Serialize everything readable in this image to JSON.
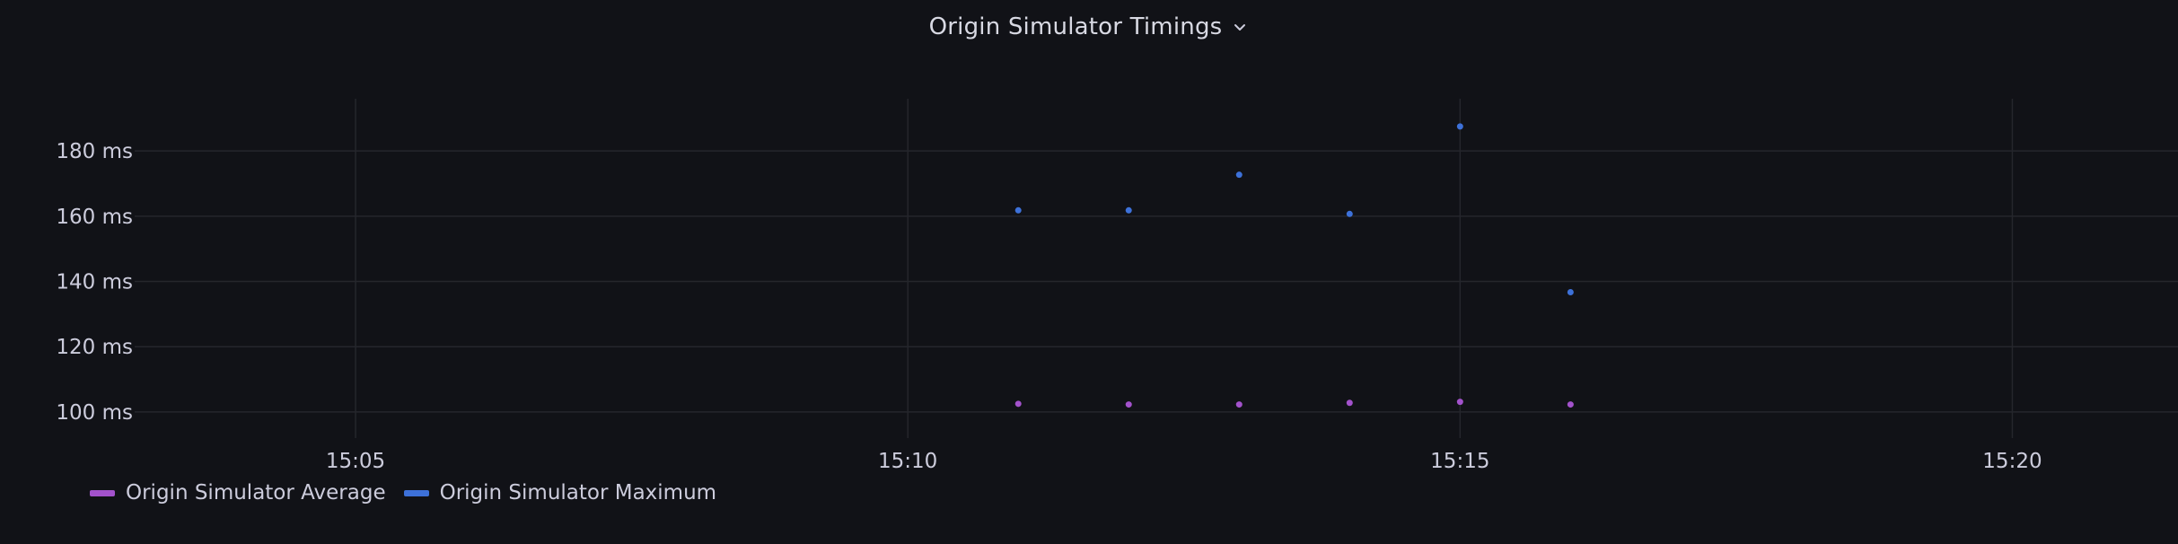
{
  "panel": {
    "title": "Origin Simulator Timings",
    "menu_icon": "chevron-down-icon"
  },
  "chart_data": {
    "type": "scatter",
    "title": "Origin Simulator Timings",
    "xlabel": "",
    "ylabel": "",
    "x_ticks": [
      "15:05",
      "15:10",
      "15:15",
      "15:20"
    ],
    "y_ticks": [
      "100 ms",
      "120 ms",
      "140 ms",
      "160 ms",
      "180 ms"
    ],
    "xlim": [
      "15:03",
      "15:21:30"
    ],
    "ylim": [
      92,
      196
    ],
    "grid": true,
    "legend_position": "bottom-left",
    "x": [
      "15:11",
      "15:12",
      "15:13",
      "15:14",
      "15:15",
      "15:16"
    ],
    "series": [
      {
        "name": "Origin Simulator Average",
        "color": "#a352cc",
        "values": [
          102.5,
          102.3,
          102.3,
          102.8,
          103.1,
          102.3
        ]
      },
      {
        "name": "Origin Simulator Maximum",
        "color": "#3d71d9",
        "values": [
          161.8,
          161.8,
          172.7,
          160.7,
          187.5,
          136.7
        ]
      }
    ]
  }
}
